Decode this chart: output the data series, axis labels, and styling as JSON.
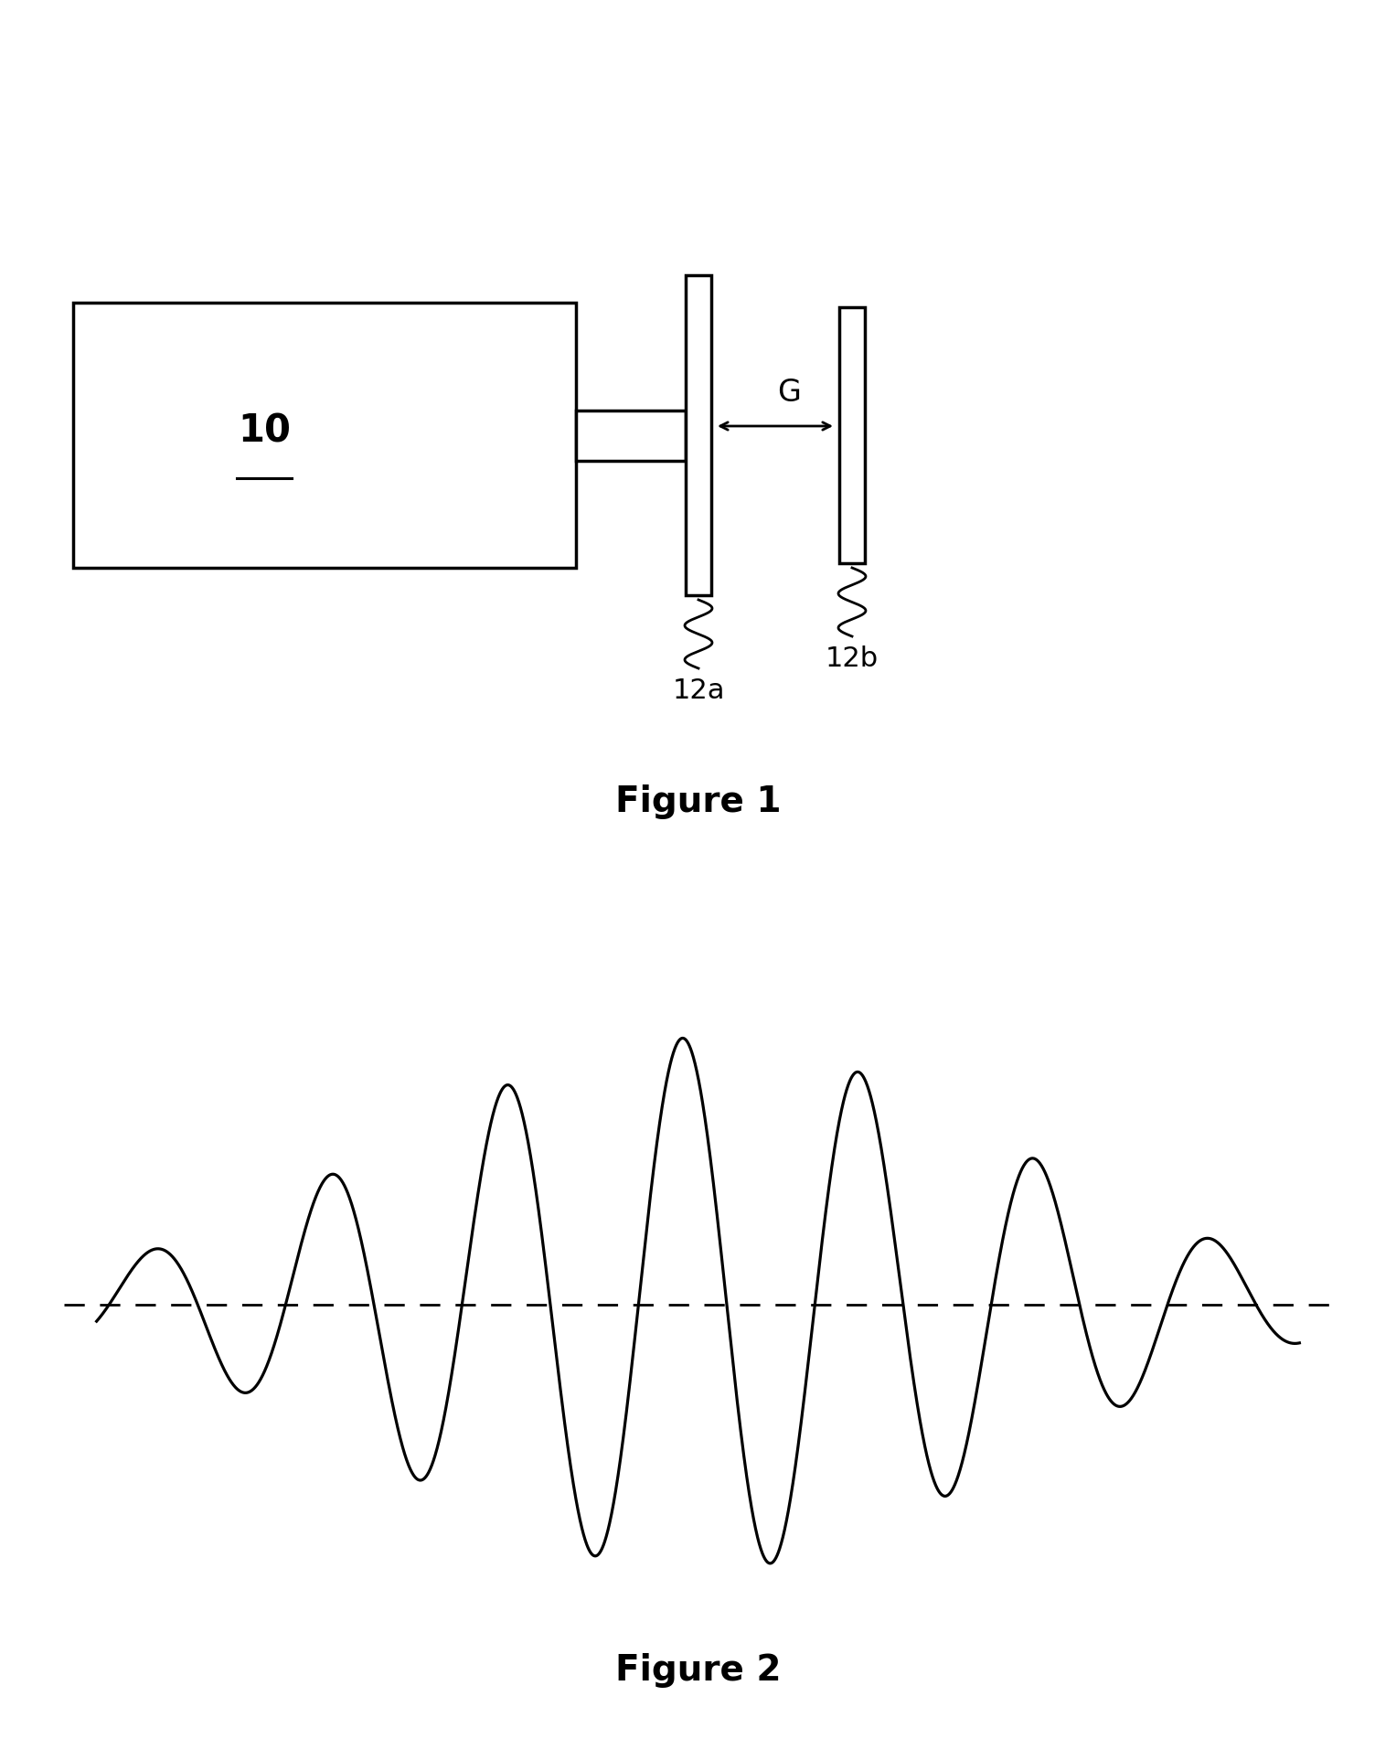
{
  "fig_width": 15.27,
  "fig_height": 19.02,
  "bg_color": "#ffffff",
  "fig1_title": "Figure 1",
  "fig2_title": "Figure 2",
  "label_10": "10",
  "label_12a": "12a",
  "label_12b": "12b",
  "label_G": "G",
  "title_fontsize": 28,
  "label_fontsize": 22,
  "body_label_fontsize": 26
}
